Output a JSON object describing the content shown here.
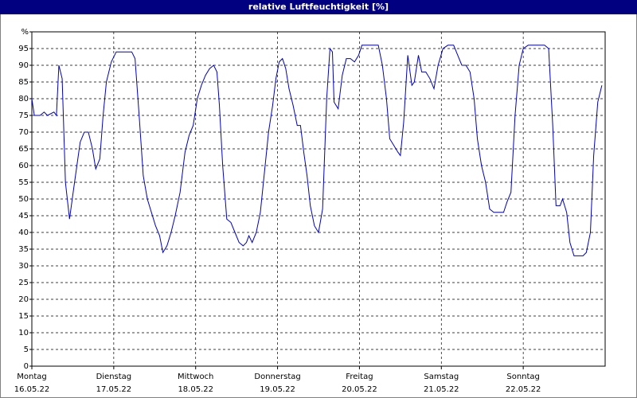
{
  "chart_data": {
    "type": "line",
    "title": "relative Luftfeuchtigkeit [%]",
    "xlim": [
      0,
      7
    ],
    "xticks": [
      {
        "value": 0,
        "label": "Montag",
        "date": "16.05.22"
      },
      {
        "value": 1,
        "label": "Dienstag",
        "date": "17.05.22"
      },
      {
        "value": 2,
        "label": "Mittwoch",
        "date": "18.05.22"
      },
      {
        "value": 3,
        "label": "Donnerstag",
        "date": "19.05.22"
      },
      {
        "value": 4,
        "label": "Freitag",
        "date": "20.05.22"
      },
      {
        "value": 5,
        "label": "Samstag",
        "date": "21.05.22"
      },
      {
        "value": 6,
        "label": "Sonntag",
        "date": "22.05.22"
      }
    ],
    "ylim": [
      0,
      100
    ],
    "yticks": [
      0,
      5,
      10,
      15,
      20,
      25,
      30,
      35,
      40,
      45,
      50,
      55,
      60,
      65,
      70,
      75,
      80,
      85,
      90,
      95,
      {
        "value": 100,
        "label": "%"
      }
    ],
    "grid": true,
    "series": [
      {
        "color": "#0000c0",
        "x": [
          0,
          0.03,
          0.1,
          0.15,
          0.19,
          0.27,
          0.3,
          0.33,
          0.37,
          0.41,
          0.46,
          0.51,
          0.55,
          0.59,
          0.64,
          0.69,
          0.74,
          0.78,
          0.83,
          0.87,
          0.91,
          0.97,
          1.03,
          1.12,
          1.22,
          1.26,
          1.31,
          1.36,
          1.41,
          1.46,
          1.51,
          1.56,
          1.6,
          1.65,
          1.7,
          1.75,
          1.81,
          1.87,
          1.92,
          1.97,
          2.02,
          2.07,
          2.12,
          2.17,
          2.22,
          2.26,
          2.29,
          2.33,
          2.38,
          2.43,
          2.48,
          2.53,
          2.58,
          2.62,
          2.65,
          2.69,
          2.74,
          2.79,
          2.84,
          2.89,
          2.94,
          2.98,
          3.02,
          3.06,
          3.1,
          3.14,
          3.19,
          3.24,
          3.28,
          3.32,
          3.36,
          3.4,
          3.45,
          3.5,
          3.55,
          3.6,
          3.64,
          3.67,
          3.69,
          3.74,
          3.79,
          3.84,
          3.89,
          3.94,
          3.99,
          4.03,
          4.13,
          4.23,
          4.28,
          4.33,
          4.37,
          4.42,
          4.47,
          4.5,
          4.54,
          4.59,
          4.64,
          4.67,
          4.72,
          4.76,
          4.81,
          4.86,
          4.91,
          4.96,
          5.02,
          5.08,
          5.15,
          5.2,
          5.25,
          5.3,
          5.35,
          5.4,
          5.44,
          5.49,
          5.54,
          5.59,
          5.64,
          5.71,
          5.76,
          5.8,
          5.85,
          5.9,
          5.95,
          6.0,
          6.06,
          6.12,
          6.19,
          6.26,
          6.31,
          6.36,
          6.4,
          6.45,
          6.48,
          6.53,
          6.57,
          6.62,
          6.68,
          6.73,
          6.77,
          6.82,
          6.86,
          6.91,
          6.96
        ],
        "values": [
          80,
          75,
          75,
          76,
          75,
          76,
          75,
          90,
          86,
          55,
          44,
          53,
          60,
          67,
          70,
          70,
          65,
          59,
          62,
          75,
          85,
          91,
          94,
          94,
          94,
          92,
          75,
          57,
          50,
          46,
          42,
          39,
          34,
          36,
          40,
          45,
          52,
          64,
          69,
          72,
          80,
          84,
          87,
          89,
          90,
          88,
          78,
          60,
          44,
          43,
          40,
          37,
          36,
          37,
          39,
          37,
          40,
          46,
          58,
          70,
          78,
          86,
          91,
          92,
          89,
          83,
          78,
          72,
          72,
          64,
          57,
          48,
          42,
          40,
          47,
          80,
          95,
          94,
          79,
          77,
          87,
          92,
          92,
          91,
          93,
          96,
          96,
          96,
          90,
          80,
          68,
          66,
          64,
          63,
          73,
          93,
          84,
          85,
          93,
          88,
          88,
          86,
          83,
          90,
          95,
          96,
          96,
          93,
          90,
          90,
          88,
          80,
          68,
          60,
          55,
          47,
          46,
          46,
          46,
          49,
          52,
          75,
          90,
          95,
          96,
          96,
          96,
          96,
          95,
          72,
          48,
          48,
          50,
          46,
          37,
          33,
          33,
          33,
          34,
          40,
          63,
          79,
          84
        ]
      }
    ]
  }
}
